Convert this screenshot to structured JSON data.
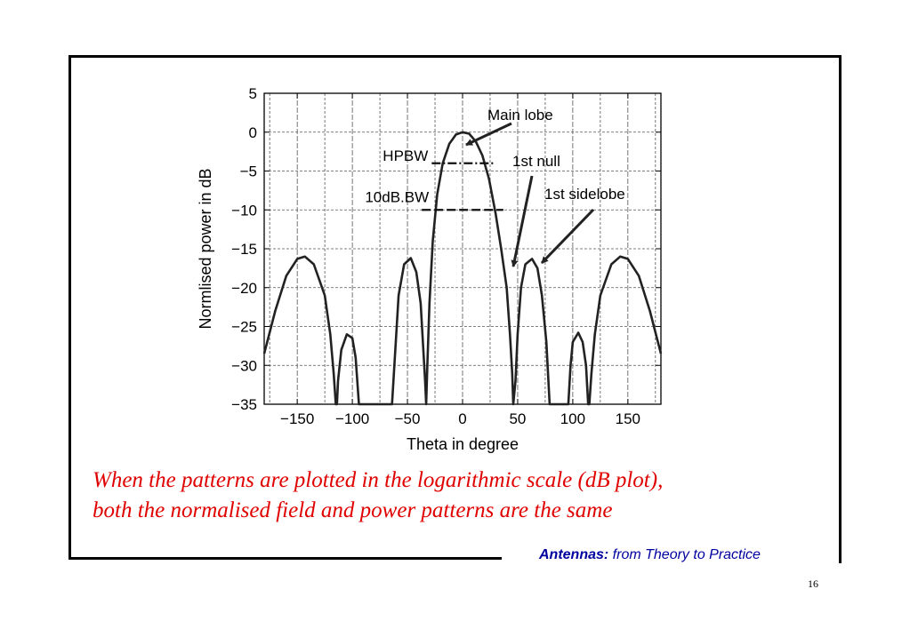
{
  "slide": {
    "caption_line1": "When the patterns are plotted in the logarithmic scale (dB plot),",
    "caption_line2": "both the normalised field and power patterns are the same",
    "footer_brand": "Antennas:",
    "footer_text": " from Theory to Practice",
    "page_number": "16"
  },
  "colors": {
    "caption": "#e00000",
    "footer": "#0000a0",
    "curve": "#222222",
    "grid": "#555555"
  },
  "chart_data": {
    "type": "line",
    "xlabel": "Theta in degree",
    "ylabel": "Normlised power in dB",
    "xlim": [
      -180,
      180
    ],
    "ylim": [
      -35,
      5
    ],
    "xticks": [
      -150,
      -100,
      -50,
      0,
      50,
      100,
      150
    ],
    "yticks": [
      5,
      0,
      -5,
      -10,
      -15,
      -20,
      -25,
      -30,
      -35
    ],
    "grid": true,
    "series": [
      {
        "points": [
          [
            -180,
            -28.5
          ],
          [
            -170,
            -23
          ],
          [
            -160,
            -18.5
          ],
          [
            -150,
            -16.3
          ],
          [
            -143,
            -16
          ],
          [
            -135,
            -17
          ],
          [
            -125,
            -21
          ],
          [
            -120,
            -26
          ],
          [
            -117,
            -31
          ],
          [
            -115,
            -35
          ],
          [
            -114,
            -35
          ],
          [
            -113,
            -32
          ],
          [
            -110,
            -28
          ],
          [
            -105,
            -26
          ],
          [
            -100,
            -26.5
          ],
          [
            -97,
            -29
          ],
          [
            -94,
            -35
          ],
          [
            -64,
            -35
          ],
          [
            -61,
            -28
          ],
          [
            -58,
            -21
          ],
          [
            -53,
            -17
          ],
          [
            -47,
            -16.2
          ],
          [
            -42,
            -18
          ],
          [
            -38,
            -22
          ],
          [
            -36,
            -27
          ],
          [
            -34,
            -32
          ],
          [
            -33,
            -35
          ],
          [
            -32,
            -30
          ],
          [
            -30,
            -22
          ],
          [
            -27,
            -14
          ],
          [
            -23,
            -8
          ],
          [
            -18,
            -4
          ],
          [
            -12,
            -1.5
          ],
          [
            -6,
            -0.3
          ],
          [
            0,
            0
          ],
          [
            6,
            -0.2
          ],
          [
            12,
            -1.2
          ],
          [
            18,
            -3
          ],
          [
            24,
            -6
          ],
          [
            30,
            -10.5
          ],
          [
            35,
            -15
          ],
          [
            40,
            -20
          ],
          [
            43,
            -26
          ],
          [
            45,
            -31
          ],
          [
            46,
            -35
          ],
          [
            48,
            -32
          ],
          [
            50,
            -26
          ],
          [
            53,
            -20
          ],
          [
            57,
            -17
          ],
          [
            63,
            -16.3
          ],
          [
            68,
            -17.5
          ],
          [
            72,
            -21
          ],
          [
            76,
            -27
          ],
          [
            79,
            -35
          ],
          [
            96,
            -35
          ],
          [
            98,
            -30
          ],
          [
            100,
            -27
          ],
          [
            105,
            -25.8
          ],
          [
            109,
            -27
          ],
          [
            112,
            -30
          ],
          [
            114,
            -35
          ],
          [
            115,
            -35
          ],
          [
            117,
            -31
          ],
          [
            120,
            -26
          ],
          [
            125,
            -21
          ],
          [
            135,
            -17
          ],
          [
            143,
            -16
          ],
          [
            150,
            -16.3
          ],
          [
            160,
            -18.5
          ],
          [
            170,
            -23
          ],
          [
            180,
            -28.5
          ]
        ]
      }
    ],
    "reference_lines": [
      {
        "label": "HPBW",
        "y": -4,
        "x": [
          -28,
          28
        ],
        "style": "dash-dot"
      },
      {
        "label": "10dB.BW",
        "y": -10,
        "x": [
          -37,
          37
        ],
        "style": "dashed"
      }
    ],
    "annotations": [
      {
        "text": "Main lobe",
        "target": [
          3,
          -0.5
        ]
      },
      {
        "text": "1st null",
        "target": [
          45,
          -17
        ]
      },
      {
        "text": "1st sidelobe",
        "target": [
          71,
          -17
        ]
      }
    ]
  }
}
